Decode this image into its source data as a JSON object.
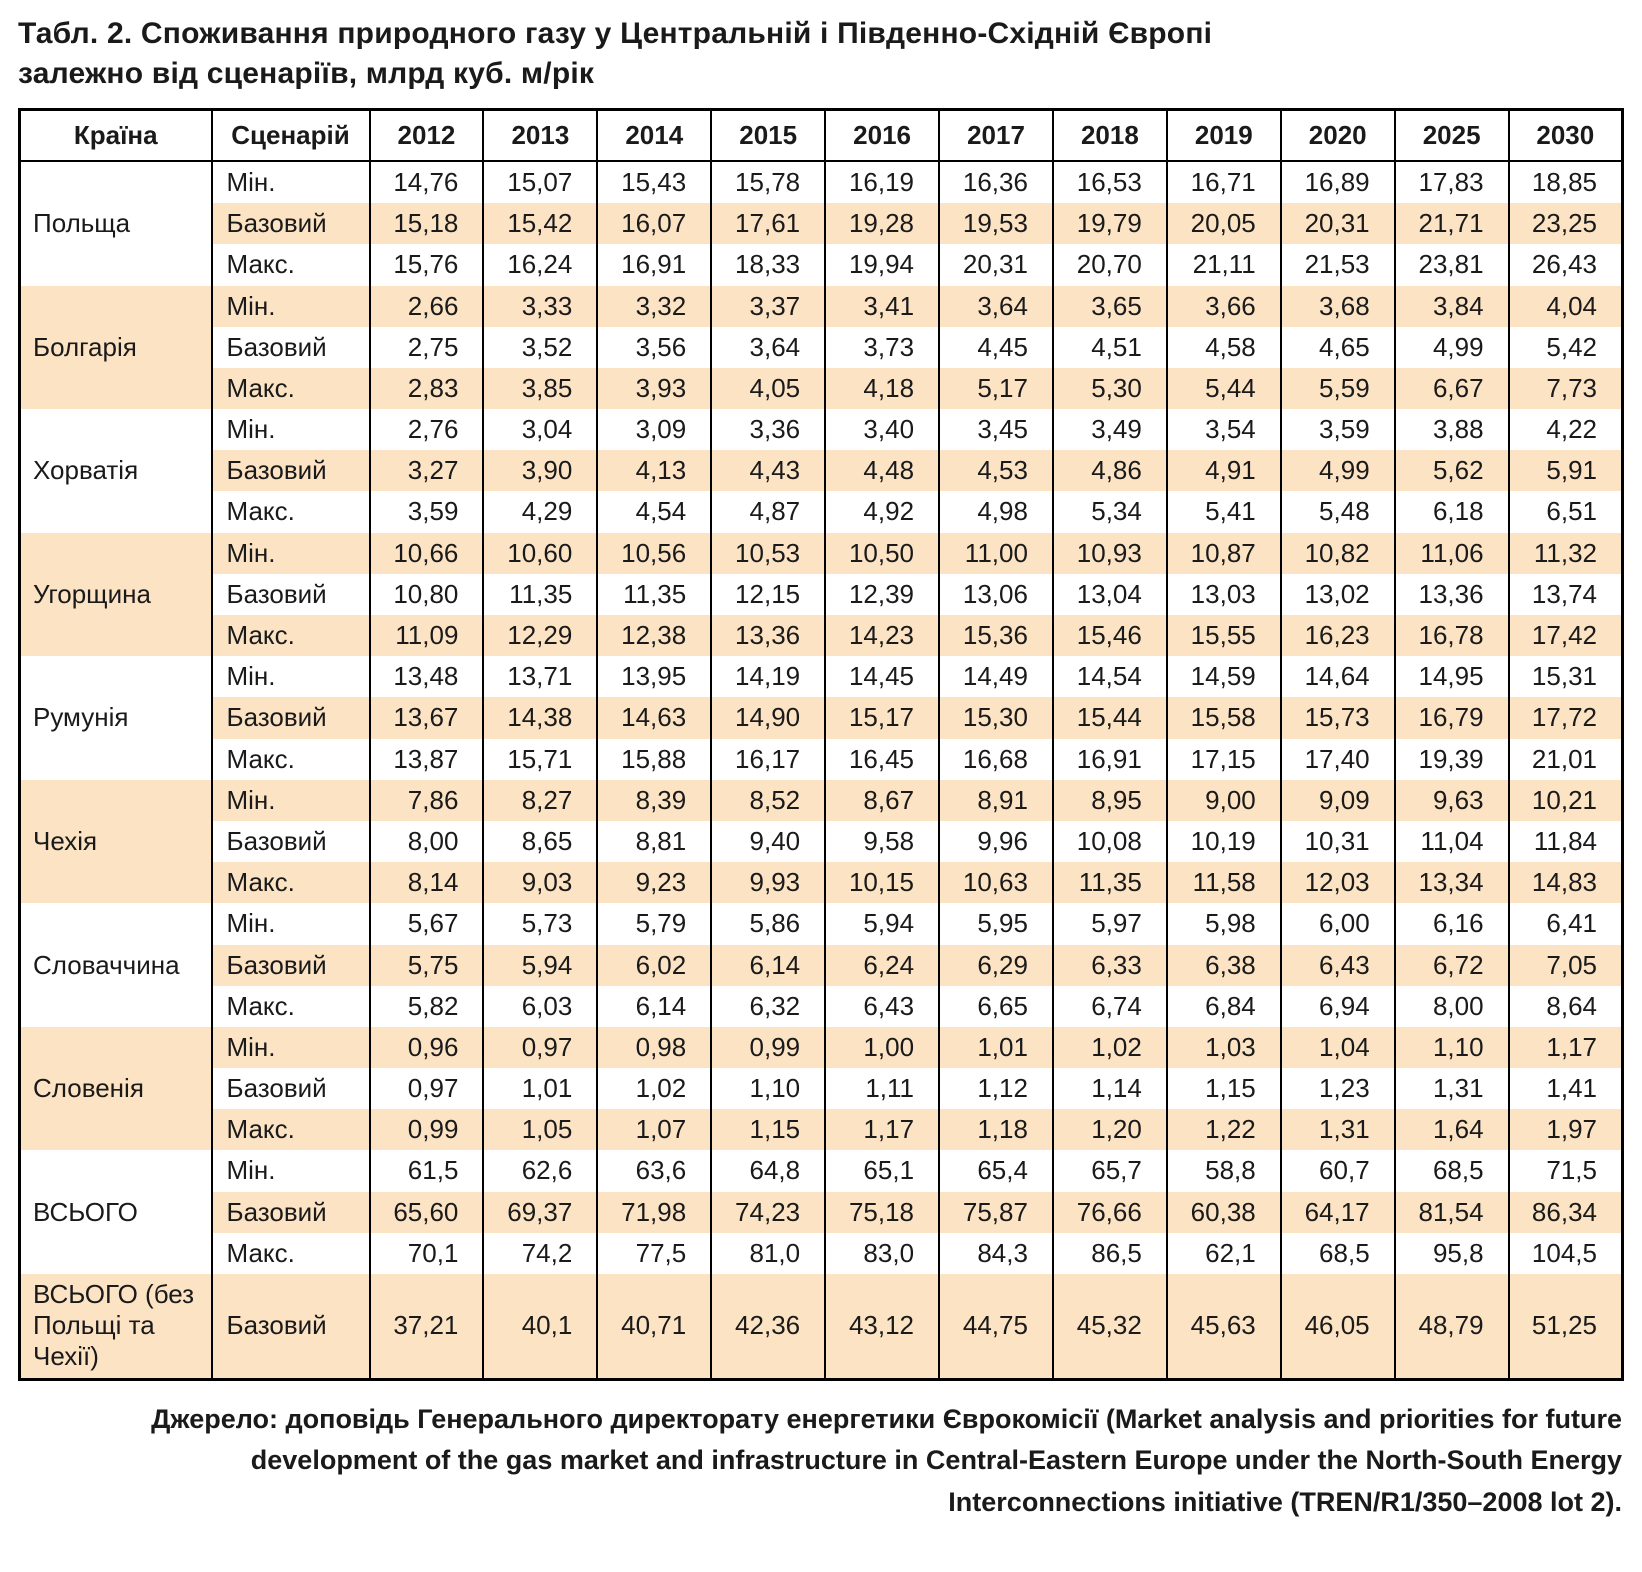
{
  "title": {
    "line1": "Табл. 2. Споживання природного газу у Центральній і Південно-Східній Європі",
    "line2": "залежно від сценаріїв, млрд куб. м/рік"
  },
  "table": {
    "headers": {
      "country": "Країна",
      "scenario": "Сценарій"
    },
    "years": [
      "2012",
      "2013",
      "2014",
      "2015",
      "2016",
      "2017",
      "2018",
      "2019",
      "2020",
      "2025",
      "2030"
    ],
    "groups": [
      {
        "country": "Польща",
        "rows": [
          {
            "scenario": "Мін.",
            "values": [
              "14,76",
              "15,07",
              "15,43",
              "15,78",
              "16,19",
              "16,36",
              "16,53",
              "16,71",
              "16,89",
              "17,83",
              "18,85"
            ]
          },
          {
            "scenario": "Базовий",
            "values": [
              "15,18",
              "15,42",
              "16,07",
              "17,61",
              "19,28",
              "19,53",
              "19,79",
              "20,05",
              "20,31",
              "21,71",
              "23,25"
            ]
          },
          {
            "scenario": "Макс.",
            "values": [
              "15,76",
              "16,24",
              "16,91",
              "18,33",
              "19,94",
              "20,31",
              "20,70",
              "21,11",
              "21,53",
              "23,81",
              "26,43"
            ]
          }
        ]
      },
      {
        "country": "Болгарія",
        "rows": [
          {
            "scenario": "Мін.",
            "values": [
              "2,66",
              "3,33",
              "3,32",
              "3,37",
              "3,41",
              "3,64",
              "3,65",
              "3,66",
              "3,68",
              "3,84",
              "4,04"
            ]
          },
          {
            "scenario": "Базовий",
            "values": [
              "2,75",
              "3,52",
              "3,56",
              "3,64",
              "3,73",
              "4,45",
              "4,51",
              "4,58",
              "4,65",
              "4,99",
              "5,42"
            ]
          },
          {
            "scenario": "Макс.",
            "values": [
              "2,83",
              "3,85",
              "3,93",
              "4,05",
              "4,18",
              "5,17",
              "5,30",
              "5,44",
              "5,59",
              "6,67",
              "7,73"
            ]
          }
        ]
      },
      {
        "country": "Хорватія",
        "rows": [
          {
            "scenario": "Мін.",
            "values": [
              "2,76",
              "3,04",
              "3,09",
              "3,36",
              "3,40",
              "3,45",
              "3,49",
              "3,54",
              "3,59",
              "3,88",
              "4,22"
            ]
          },
          {
            "scenario": "Базовий",
            "values": [
              "3,27",
              "3,90",
              "4,13",
              "4,43",
              "4,48",
              "4,53",
              "4,86",
              "4,91",
              "4,99",
              "5,62",
              "5,91"
            ]
          },
          {
            "scenario": "Макс.",
            "values": [
              "3,59",
              "4,29",
              "4,54",
              "4,87",
              "4,92",
              "4,98",
              "5,34",
              "5,41",
              "5,48",
              "6,18",
              "6,51"
            ]
          }
        ]
      },
      {
        "country": "Угорщина",
        "rows": [
          {
            "scenario": "Мін.",
            "values": [
              "10,66",
              "10,60",
              "10,56",
              "10,53",
              "10,50",
              "11,00",
              "10,93",
              "10,87",
              "10,82",
              "11,06",
              "11,32"
            ]
          },
          {
            "scenario": "Базовий",
            "values": [
              "10,80",
              "11,35",
              "11,35",
              "12,15",
              "12,39",
              "13,06",
              "13,04",
              "13,03",
              "13,02",
              "13,36",
              "13,74"
            ]
          },
          {
            "scenario": "Макс.",
            "values": [
              "11,09",
              "12,29",
              "12,38",
              "13,36",
              "14,23",
              "15,36",
              "15,46",
              "15,55",
              "16,23",
              "16,78",
              "17,42"
            ]
          }
        ]
      },
      {
        "country": "Румунія",
        "rows": [
          {
            "scenario": "Мін.",
            "values": [
              "13,48",
              "13,71",
              "13,95",
              "14,19",
              "14,45",
              "14,49",
              "14,54",
              "14,59",
              "14,64",
              "14,95",
              "15,31"
            ]
          },
          {
            "scenario": "Базовий",
            "values": [
              "13,67",
              "14,38",
              "14,63",
              "14,90",
              "15,17",
              "15,30",
              "15,44",
              "15,58",
              "15,73",
              "16,79",
              "17,72"
            ]
          },
          {
            "scenario": "Макс.",
            "values": [
              "13,87",
              "15,71",
              "15,88",
              "16,17",
              "16,45",
              "16,68",
              "16,91",
              "17,15",
              "17,40",
              "19,39",
              "21,01"
            ]
          }
        ]
      },
      {
        "country": "Чехія",
        "rows": [
          {
            "scenario": "Мін.",
            "values": [
              "7,86",
              "8,27",
              "8,39",
              "8,52",
              "8,67",
              "8,91",
              "8,95",
              "9,00",
              "9,09",
              "9,63",
              "10,21"
            ]
          },
          {
            "scenario": "Базовий",
            "values": [
              "8,00",
              "8,65",
              "8,81",
              "9,40",
              "9,58",
              "9,96",
              "10,08",
              "10,19",
              "10,31",
              "11,04",
              "11,84"
            ]
          },
          {
            "scenario": "Макс.",
            "values": [
              "8,14",
              "9,03",
              "9,23",
              "9,93",
              "10,15",
              "10,63",
              "11,35",
              "11,58",
              "12,03",
              "13,34",
              "14,83"
            ]
          }
        ]
      },
      {
        "country": "Словаччина",
        "rows": [
          {
            "scenario": "Мін.",
            "values": [
              "5,67",
              "5,73",
              "5,79",
              "5,86",
              "5,94",
              "5,95",
              "5,97",
              "5,98",
              "6,00",
              "6,16",
              "6,41"
            ]
          },
          {
            "scenario": "Базовий",
            "values": [
              "5,75",
              "5,94",
              "6,02",
              "6,14",
              "6,24",
              "6,29",
              "6,33",
              "6,38",
              "6,43",
              "6,72",
              "7,05"
            ]
          },
          {
            "scenario": "Макс.",
            "values": [
              "5,82",
              "6,03",
              "6,14",
              "6,32",
              "6,43",
              "6,65",
              "6,74",
              "6,84",
              "6,94",
              "8,00",
              "8,64"
            ]
          }
        ]
      },
      {
        "country": "Словенія",
        "rows": [
          {
            "scenario": "Мін.",
            "values": [
              "0,96",
              "0,97",
              "0,98",
              "0,99",
              "1,00",
              "1,01",
              "1,02",
              "1,03",
              "1,04",
              "1,10",
              "1,17"
            ]
          },
          {
            "scenario": "Базовий",
            "values": [
              "0,97",
              "1,01",
              "1,02",
              "1,10",
              "1,11",
              "1,12",
              "1,14",
              "1,15",
              "1,23",
              "1,31",
              "1,41"
            ]
          },
          {
            "scenario": "Макс.",
            "values": [
              "0,99",
              "1,05",
              "1,07",
              "1,15",
              "1,17",
              "1,18",
              "1,20",
              "1,22",
              "1,31",
              "1,64",
              "1,97"
            ]
          }
        ]
      },
      {
        "country": "ВСЬОГО",
        "rows": [
          {
            "scenario": "Мін.",
            "values": [
              "61,5",
              "62,6",
              "63,6",
              "64,8",
              "65,1",
              "65,4",
              "65,7",
              "58,8",
              "60,7",
              "68,5",
              "71,5"
            ]
          },
          {
            "scenario": "Базовий",
            "values": [
              "65,60",
              "69,37",
              "71,98",
              "74,23",
              "75,18",
              "75,87",
              "76,66",
              "60,38",
              "64,17",
              "81,54",
              "86,34"
            ]
          },
          {
            "scenario": "Макс.",
            "values": [
              "70,1",
              "74,2",
              "77,5",
              "81,0",
              "83,0",
              "84,3",
              "86,5",
              "62,1",
              "68,5",
              "95,8",
              "104,5"
            ]
          }
        ]
      },
      {
        "country": "ВСЬОГО (без Польщі та Чехії)",
        "rows": [
          {
            "scenario": "Базовий",
            "values": [
              "37,21",
              "40,1",
              "40,71",
              "42,36",
              "43,12",
              "44,75",
              "45,32",
              "45,63",
              "46,05",
              "48,79",
              "51,25"
            ]
          }
        ]
      }
    ]
  },
  "footer": {
    "lines": [
      "Джерело: доповідь Генерального директорату енергетики Єврокомісії (Market analysis and priorities for future",
      "development of the gas market and infrastructure in Central-Eastern Europe under the North-South Energy",
      "Interconnections initiative (TREN/R1/350–2008 lot 2)."
    ]
  },
  "colors": {
    "stripe": "#fce3c4",
    "border": "#000000",
    "text": "#1a1a1a"
  }
}
